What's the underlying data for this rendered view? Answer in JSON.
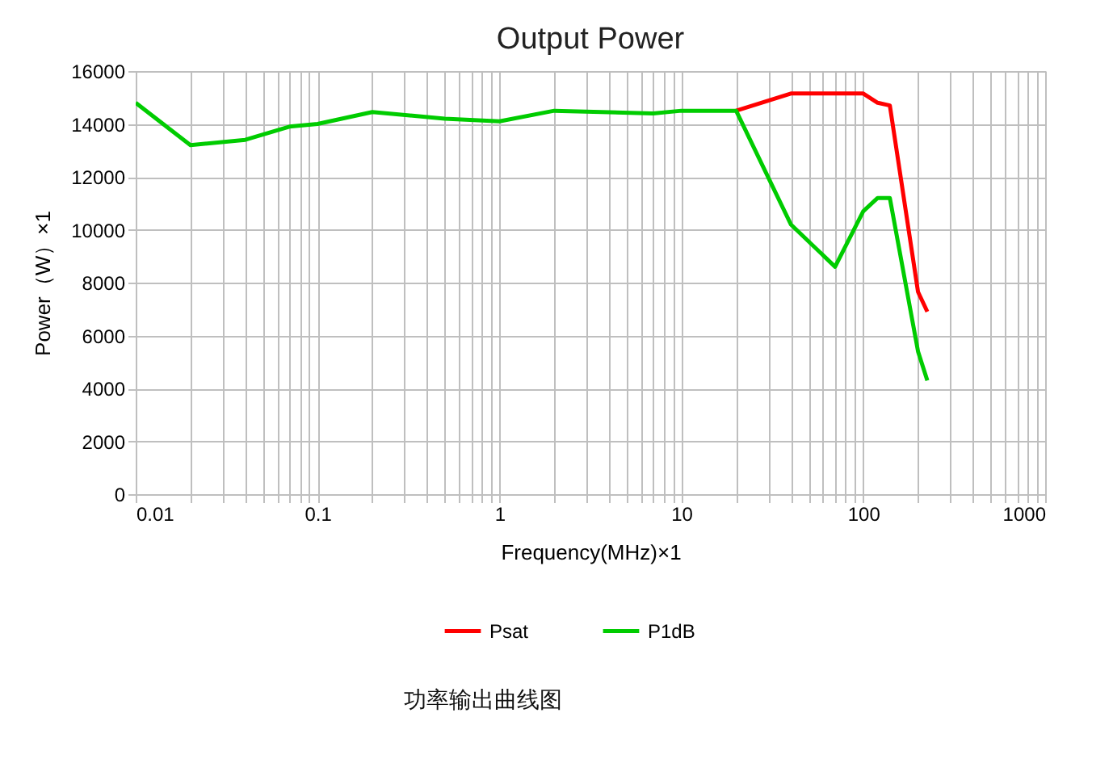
{
  "chart_data": {
    "type": "line",
    "title": "Output Power",
    "xlabel": "Frequency(MHz)×1",
    "ylabel": "Power（W）×1",
    "annotations": [
      "功率输出曲线图"
    ],
    "log": "x",
    "grid": true,
    "legend": "bottom",
    "marker": "none",
    "line_style": "solid",
    "xlim": [
      0.01,
      1000
    ],
    "xticks": [
      0.01,
      {
        "value": 0.02,
        "label": null
      },
      {
        "value": 0.03,
        "label": null
      },
      {
        "value": 0.04,
        "label": null
      },
      {
        "value": 0.05,
        "label": null
      },
      {
        "value": 0.06,
        "label": null
      },
      {
        "value": 0.07,
        "label": null
      },
      {
        "value": 0.08,
        "label": null
      },
      {
        "value": 0.09,
        "label": null
      },
      0.1,
      {
        "value": 0.2,
        "label": null
      },
      {
        "value": 0.3,
        "label": null
      },
      {
        "value": 0.4,
        "label": null
      },
      {
        "value": 0.5,
        "label": null
      },
      {
        "value": 0.6,
        "label": null
      },
      {
        "value": 0.7,
        "label": null
      },
      {
        "value": 0.8,
        "label": null
      },
      {
        "value": 0.9,
        "label": null
      },
      1,
      {
        "value": 2,
        "label": null
      },
      {
        "value": 3,
        "label": null
      },
      {
        "value": 4,
        "label": null
      },
      {
        "value": 5,
        "label": null
      },
      {
        "value": 6,
        "label": null
      },
      {
        "value": 7,
        "label": null
      },
      {
        "value": 8,
        "label": null
      },
      {
        "value": 9,
        "label": null
      },
      10,
      {
        "value": 20,
        "label": null
      },
      {
        "value": 30,
        "label": null
      },
      {
        "value": 40,
        "label": null
      },
      {
        "value": 50,
        "label": null
      },
      {
        "value": 60,
        "label": null
      },
      {
        "value": 70,
        "label": null
      },
      {
        "value": 80,
        "label": null
      },
      {
        "value": 90,
        "label": null
      },
      100,
      {
        "value": 200,
        "label": null
      },
      {
        "value": 300,
        "label": null
      },
      {
        "value": 400,
        "label": null
      },
      {
        "value": 500,
        "label": null
      },
      {
        "value": 600,
        "label": null
      },
      {
        "value": 700,
        "label": null
      },
      {
        "value": 800,
        "label": null
      },
      {
        "value": 900,
        "label": null
      },
      1000
    ],
    "ylim": [
      0,
      16000
    ],
    "yticks": [
      0,
      2000,
      4000,
      6000,
      8000,
      10000,
      12000,
      14000,
      16000
    ],
    "series": [
      {
        "name": "Psat",
        "color": "#ff0000",
        "x": [
          20,
          40,
          100,
          120,
          140,
          200,
          225
        ],
        "values": [
          14500,
          15150,
          15150,
          14800,
          14700,
          7650,
          6900
        ]
      },
      {
        "name": "P1dB",
        "color": "#00cc00",
        "x": [
          0.01,
          0.02,
          0.04,
          0.07,
          0.1,
          0.2,
          0.5,
          1,
          2,
          7,
          10,
          20,
          40,
          70,
          100,
          120,
          140,
          200,
          225
        ],
        "values": [
          14800,
          13200,
          13400,
          13900,
          14000,
          14450,
          14200,
          14100,
          14500,
          14400,
          14500,
          14500,
          10200,
          8600,
          10700,
          11200,
          11200,
          5400,
          4300
        ]
      }
    ]
  }
}
